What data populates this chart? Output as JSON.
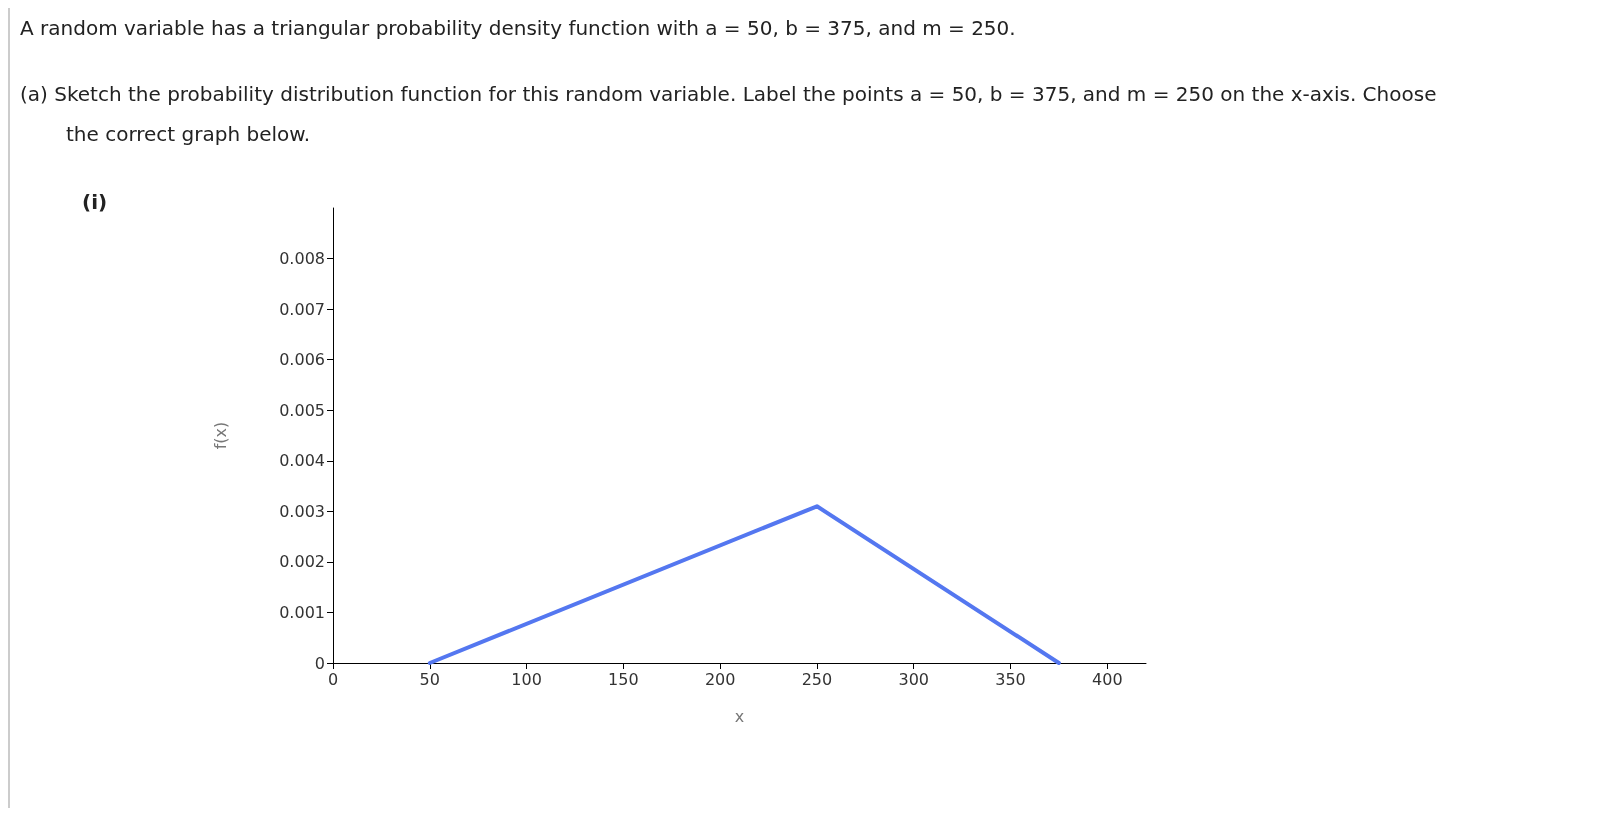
{
  "chart_data": {
    "type": "line",
    "title": "A random variable has a triangular probability density function with a = 50, b = 375, and m = 250.",
    "subtitle": "(a) Sketch the probability distribution function for this random variable. Label the points a = 50, b = 375, and m = 250 on the x-axis. Choose the correct graph below.",
    "annotations": [
      "(i)"
    ],
    "xlabel": "x",
    "ylabel": "f(x)",
    "x": [
      50,
      250,
      375
    ],
    "series": [
      {
        "color": "#5477f0",
        "values": [
          0,
          0.0031,
          0
        ]
      }
    ],
    "xlim": [
      0,
      420
    ],
    "xticks": [
      0,
      50,
      100,
      150,
      200,
      250,
      300,
      350,
      400
    ],
    "ylim": [
      0,
      0.009
    ],
    "yticks": [
      0,
      0.001,
      0.002,
      0.003,
      0.004,
      0.005,
      0.006,
      0.007,
      0.008
    ]
  }
}
